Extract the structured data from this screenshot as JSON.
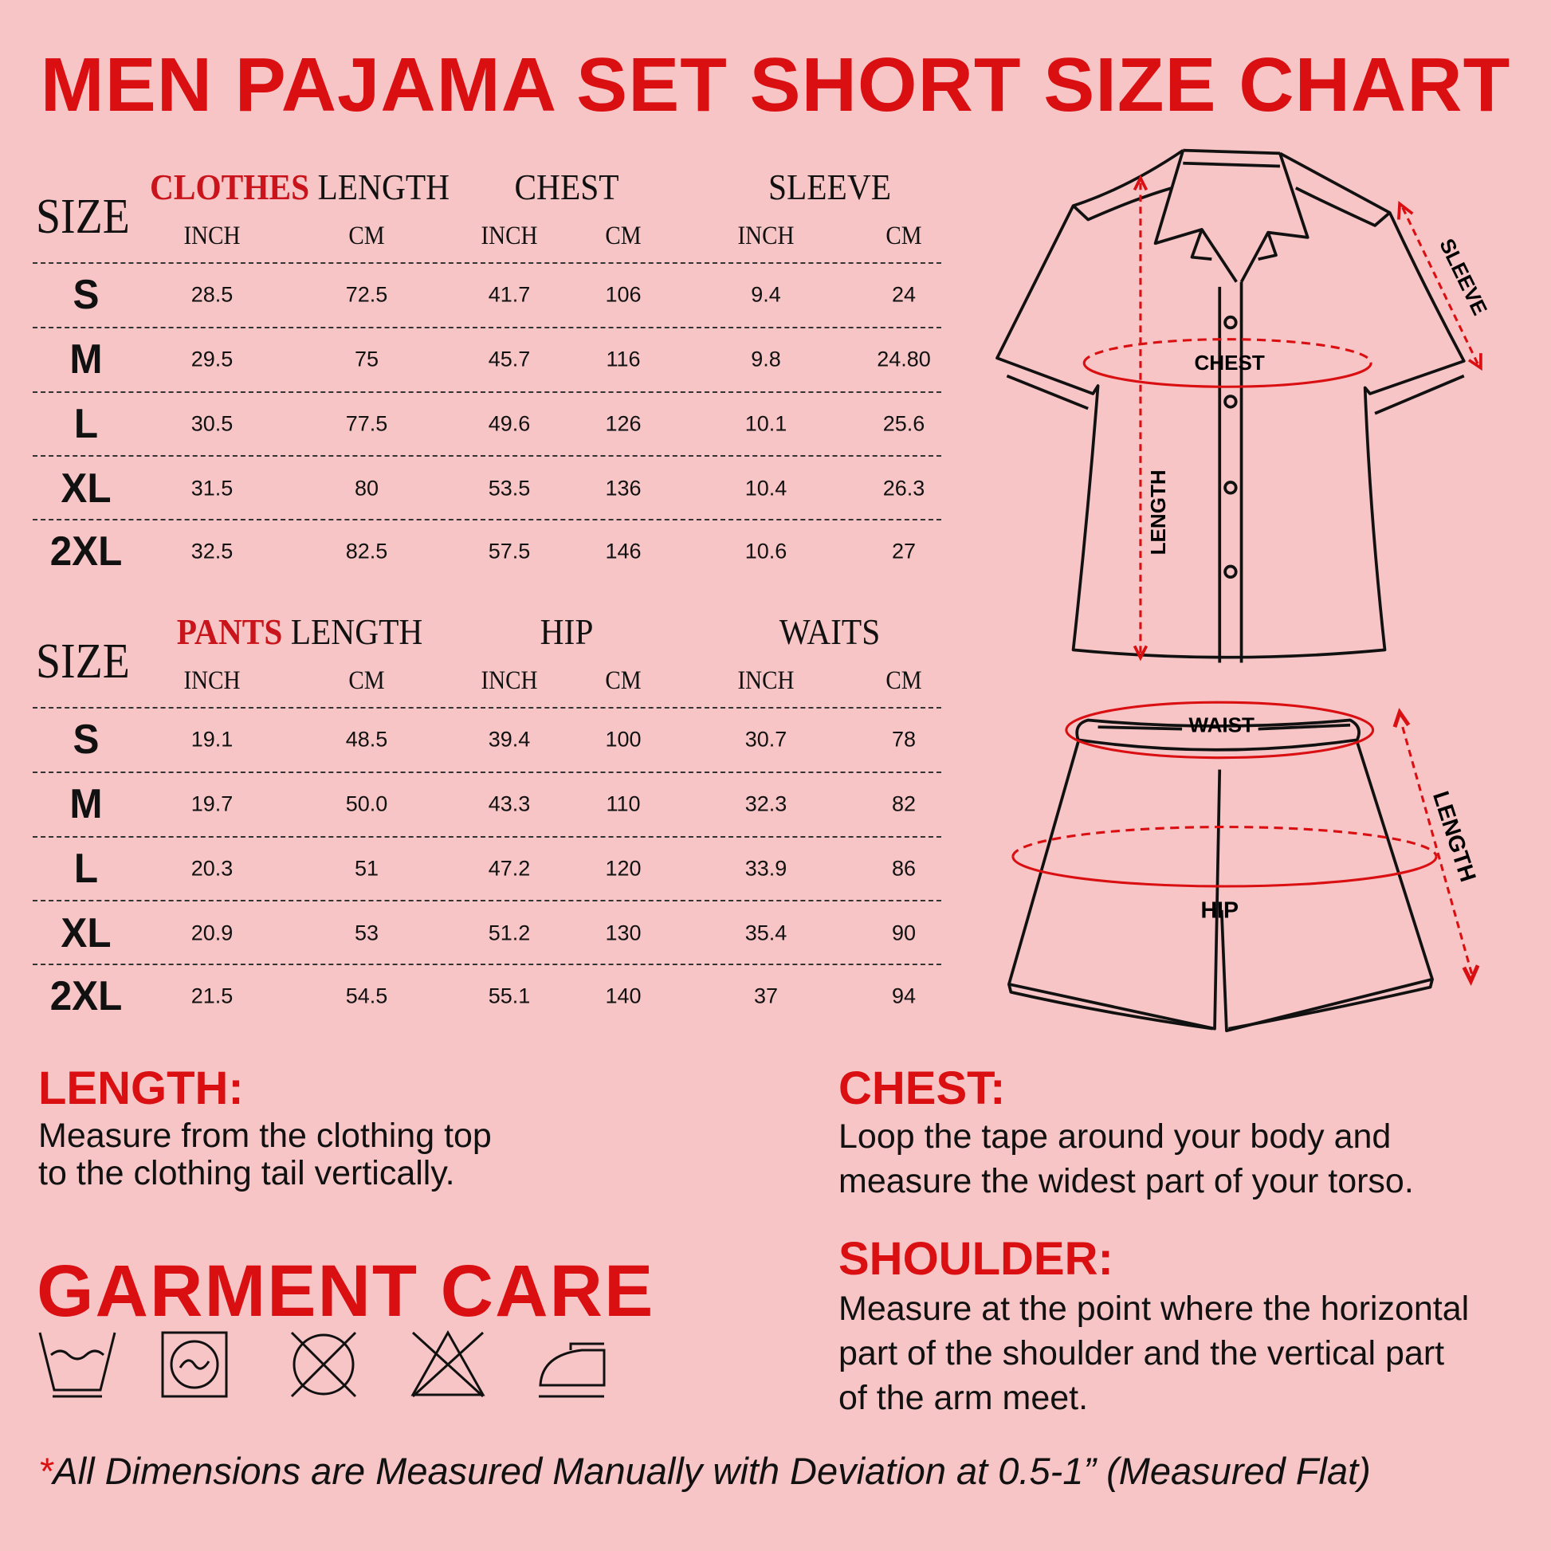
{
  "title": "MEN PAJAMA SET SHORT SIZE CHART",
  "accent_color": "#d90f12",
  "background_color": "#f7c5c6",
  "tables": [
    {
      "size_label": "SIZE",
      "groups": [
        {
          "prefix": "CLOTHES",
          "label": "LENGTH"
        },
        {
          "prefix": "",
          "label": "CHEST"
        },
        {
          "prefix": "",
          "label": "SLEEVE"
        }
      ],
      "units": [
        "INCH",
        "CM",
        "INCH",
        "CM",
        "INCH",
        "CM"
      ],
      "rows": [
        {
          "size": "S",
          "values": [
            "28.5",
            "72.5",
            "41.7",
            "106",
            "9.4",
            "24"
          ]
        },
        {
          "size": "M",
          "values": [
            "29.5",
            "75",
            "45.7",
            "116",
            "9.8",
            "24.80"
          ]
        },
        {
          "size": "L",
          "values": [
            "30.5",
            "77.5",
            "49.6",
            "126",
            "10.1",
            "25.6"
          ]
        },
        {
          "size": "XL",
          "values": [
            "31.5",
            "80",
            "53.5",
            "136",
            "10.4",
            "26.3"
          ]
        },
        {
          "size": "2XL",
          "values": [
            "32.5",
            "82.5",
            "57.5",
            "146",
            "10.6",
            "27"
          ]
        }
      ]
    },
    {
      "size_label": "SIZE",
      "groups": [
        {
          "prefix": "PANTS",
          "label": "LENGTH"
        },
        {
          "prefix": "",
          "label": "HIP"
        },
        {
          "prefix": "",
          "label": "WAITS"
        }
      ],
      "units": [
        "INCH",
        "CM",
        "INCH",
        "CM",
        "INCH",
        "CM"
      ],
      "rows": [
        {
          "size": "S",
          "values": [
            "19.1",
            "48.5",
            "39.4",
            "100",
            "30.7",
            "78"
          ]
        },
        {
          "size": "M",
          "values": [
            "19.7",
            "50.0",
            "43.3",
            "110",
            "32.3",
            "82"
          ]
        },
        {
          "size": "L",
          "values": [
            "20.3",
            "51",
            "47.2",
            "120",
            "33.9",
            "86"
          ]
        },
        {
          "size": "XL",
          "values": [
            "20.9",
            "53",
            "51.2",
            "130",
            "35.4",
            "90"
          ]
        },
        {
          "size": "2XL",
          "values": [
            "21.5",
            "54.5",
            "55.1",
            "140",
            "37",
            "94"
          ]
        }
      ]
    }
  ],
  "diagram": {
    "shirt_labels": {
      "chest": "CHEST",
      "length": "LENGTH",
      "sleeve": "SLEEVE"
    },
    "shorts_labels": {
      "waist": "WAIST",
      "hip": "HIP",
      "length": "LENGTH"
    }
  },
  "notes": {
    "length": {
      "heading": "LENGTH:",
      "lines": [
        "Measure from the clothing top",
        "to the clothing tail vertically."
      ]
    },
    "chest": {
      "heading": "CHEST:",
      "lines": [
        "Loop the tape around your body and",
        "measure the widest part of your torso."
      ]
    },
    "shoulder": {
      "heading": "SHOULDER:",
      "lines": [
        "Measure at the point where the horizontal",
        "part of the shoulder and the vertical part",
        "of the arm meet."
      ]
    }
  },
  "care": {
    "title": "GARMENT CARE",
    "icons": [
      "hand-wash-icon",
      "tumble-dry-icon",
      "do-not-dry-clean-icon",
      "do-not-bleach-icon",
      "iron-icon"
    ]
  },
  "footer": {
    "asterisk": "*",
    "text": "All Dimensions are Measured Manually with Deviation at 0.5-1” (Measured Flat)"
  }
}
